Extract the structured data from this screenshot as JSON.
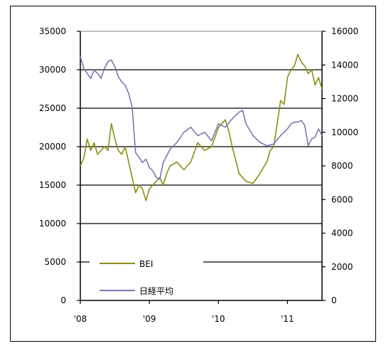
{
  "chart_data": {
    "type": "line",
    "x_tick_labels": [
      "'08",
      "'09",
      "'10",
      "'11"
    ],
    "x_ticks_years": [
      2008.0,
      2009.0,
      2010.0,
      2011.0
    ],
    "x_range": [
      2008.0,
      2011.5
    ],
    "y_left": {
      "range": [
        0,
        35000
      ],
      "ticks": [
        0,
        5000,
        10000,
        15000,
        20000,
        25000,
        30000,
        35000
      ]
    },
    "y_right": {
      "range": [
        0,
        16000
      ],
      "ticks": [
        0,
        2000,
        4000,
        6000,
        8000,
        10000,
        12000,
        14000,
        16000
      ]
    },
    "grid": true,
    "legend": {
      "position": "bottom-left"
    },
    "colors": {
      "bei": "#8c8c14",
      "nikkei": "#7878b4",
      "grid": "#000000",
      "frame": "#000000"
    },
    "series": [
      {
        "name": "BEI",
        "axis": "left",
        "x": [
          2008.0,
          2008.05,
          2008.1,
          2008.15,
          2008.2,
          2008.25,
          2008.3,
          2008.35,
          2008.4,
          2008.45,
          2008.5,
          2008.55,
          2008.6,
          2008.65,
          2008.7,
          2008.75,
          2008.8,
          2008.85,
          2008.9,
          2008.95,
          2009.0,
          2009.05,
          2009.1,
          2009.15,
          2009.2,
          2009.25,
          2009.3,
          2009.4,
          2009.5,
          2009.6,
          2009.7,
          2009.8,
          2009.9,
          2010.0,
          2010.1,
          2010.15,
          2010.2,
          2010.3,
          2010.4,
          2010.5,
          2010.6,
          2010.7,
          2010.75,
          2010.8,
          2010.85,
          2010.9,
          2010.95,
          2011.0,
          2011.05,
          2011.1,
          2011.15,
          2011.2,
          2011.25,
          2011.3,
          2011.35,
          2011.4,
          2011.45,
          2011.5
        ],
        "y": [
          17500,
          18500,
          21000,
          19500,
          20500,
          19000,
          19500,
          20000,
          19500,
          23000,
          21000,
          19500,
          19000,
          20000,
          18000,
          16000,
          14000,
          15000,
          14500,
          13000,
          14500,
          15000,
          15500,
          16000,
          15000,
          16500,
          17500,
          18000,
          17000,
          18000,
          20500,
          19500,
          20000,
          22500,
          23500,
          22000,
          20000,
          16500,
          15500,
          15200,
          16500,
          18000,
          19500,
          20000,
          23000,
          26000,
          25500,
          29000,
          30000,
          30500,
          32000,
          31000,
          30500,
          29500,
          30000,
          28000,
          29000,
          27500
        ]
      },
      {
        "name": "日経平均",
        "axis": "right",
        "x": [
          2008.0,
          2008.05,
          2008.1,
          2008.15,
          2008.2,
          2008.25,
          2008.3,
          2008.35,
          2008.4,
          2008.45,
          2008.5,
          2008.55,
          2008.6,
          2008.65,
          2008.7,
          2008.75,
          2008.8,
          2008.85,
          2008.9,
          2008.95,
          2009.0,
          2009.05,
          2009.1,
          2009.15,
          2009.2,
          2009.3,
          2009.4,
          2009.5,
          2009.6,
          2009.7,
          2009.8,
          2009.9,
          2010.0,
          2010.1,
          2010.2,
          2010.3,
          2010.35,
          2010.4,
          2010.5,
          2010.6,
          2010.7,
          2010.8,
          2010.9,
          2011.0,
          2011.05,
          2011.1,
          2011.15,
          2011.2,
          2011.25,
          2011.3,
          2011.35,
          2011.4,
          2011.45,
          2011.5
        ],
        "y": [
          14500,
          13800,
          13500,
          13200,
          13700,
          13500,
          13200,
          13800,
          14200,
          14300,
          13900,
          13300,
          13000,
          12800,
          12300,
          11500,
          8800,
          8500,
          8200,
          8400,
          7900,
          7700,
          7300,
          7200,
          8200,
          9000,
          9400,
          10000,
          10300,
          9800,
          10000,
          9500,
          10500,
          10300,
          10800,
          11200,
          11300,
          10500,
          9800,
          9400,
          9200,
          9300,
          9800,
          10200,
          10500,
          10600,
          10600,
          10700,
          10400,
          9200,
          9600,
          9700,
          10200,
          9800
        ]
      }
    ]
  }
}
